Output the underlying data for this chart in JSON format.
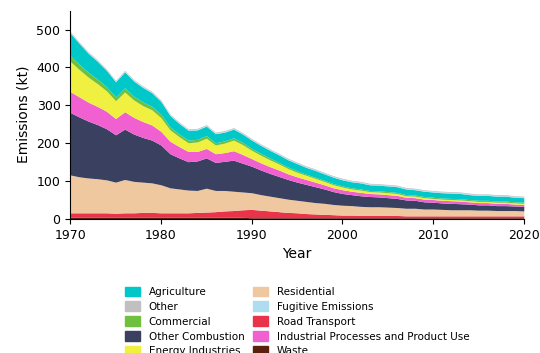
{
  "years": [
    1970,
    1971,
    1972,
    1973,
    1974,
    1975,
    1976,
    1977,
    1978,
    1979,
    1980,
    1981,
    1982,
    1983,
    1984,
    1985,
    1986,
    1987,
    1988,
    1989,
    1990,
    1991,
    1992,
    1993,
    1994,
    1995,
    1996,
    1997,
    1998,
    1999,
    2000,
    2001,
    2002,
    2003,
    2004,
    2005,
    2006,
    2007,
    2008,
    2009,
    2010,
    2011,
    2012,
    2013,
    2014,
    2015,
    2016,
    2017,
    2018,
    2019,
    2020
  ],
  "series": {
    "Waste": [
      4,
      4,
      4,
      4,
      4,
      4,
      4,
      4,
      4,
      4,
      4,
      4,
      4,
      4,
      4,
      4,
      4,
      4,
      4,
      4,
      3,
      3,
      3,
      3,
      3,
      3,
      3,
      3,
      3,
      3,
      3,
      3,
      3,
      3,
      3,
      3,
      3,
      3,
      3,
      3,
      3,
      3,
      3,
      3,
      3,
      3,
      3,
      3,
      3,
      3,
      3
    ],
    "Road Transport": [
      12,
      12,
      12,
      12,
      12,
      11,
      12,
      12,
      13,
      13,
      12,
      12,
      12,
      12,
      13,
      14,
      15,
      17,
      18,
      20,
      22,
      20,
      18,
      16,
      14,
      13,
      11,
      10,
      9,
      8,
      7,
      7,
      6,
      6,
      6,
      6,
      6,
      5,
      5,
      5,
      5,
      5,
      5,
      5,
      5,
      5,
      5,
      5,
      5,
      5,
      5
    ],
    "Residential": [
      100,
      95,
      92,
      90,
      87,
      82,
      88,
      83,
      80,
      78,
      74,
      66,
      63,
      60,
      58,
      63,
      56,
      54,
      51,
      47,
      44,
      41,
      39,
      37,
      35,
      33,
      32,
      30,
      29,
      27,
      26,
      25,
      24,
      23,
      23,
      22,
      21,
      20,
      20,
      18,
      18,
      17,
      16,
      16,
      16,
      15,
      15,
      14,
      14,
      14,
      13
    ],
    "Other Combustion": [
      165,
      158,
      150,
      143,
      135,
      125,
      133,
      125,
      118,
      113,
      105,
      90,
      82,
      75,
      78,
      80,
      74,
      77,
      82,
      76,
      70,
      65,
      60,
      56,
      52,
      48,
      45,
      42,
      38,
      34,
      31,
      29,
      28,
      27,
      26,
      25,
      24,
      22,
      21,
      19,
      18,
      17,
      17,
      16,
      15,
      14,
      14,
      13,
      13,
      12,
      12
    ],
    "Other": [
      2,
      2,
      2,
      2,
      2,
      2,
      2,
      2,
      2,
      2,
      2,
      2,
      2,
      2,
      2,
      2,
      2,
      2,
      2,
      2,
      2,
      2,
      2,
      2,
      2,
      2,
      2,
      2,
      2,
      2,
      2,
      2,
      2,
      2,
      2,
      2,
      2,
      2,
      2,
      2,
      2,
      2,
      2,
      2,
      2,
      2,
      2,
      2,
      2,
      2,
      2
    ],
    "Industrial Processes and Product Use": [
      55,
      53,
      50,
      48,
      46,
      43,
      46,
      44,
      42,
      40,
      36,
      33,
      30,
      27,
      25,
      25,
      23,
      23,
      25,
      23,
      20,
      19,
      18,
      17,
      15,
      14,
      13,
      12,
      11,
      10,
      10,
      9,
      9,
      8,
      8,
      8,
      8,
      7,
      7,
      7,
      7,
      7,
      7,
      7,
      6,
      6,
      6,
      6,
      6,
      5,
      5
    ],
    "Fugitive Emissions": [
      2,
      2,
      2,
      2,
      2,
      2,
      2,
      2,
      2,
      2,
      2,
      2,
      2,
      2,
      2,
      2,
      2,
      2,
      2,
      2,
      2,
      2,
      2,
      2,
      2,
      2,
      2,
      2,
      2,
      2,
      2,
      2,
      2,
      2,
      2,
      2,
      2,
      2,
      2,
      2,
      2,
      2,
      2,
      2,
      2,
      2,
      2,
      2,
      2,
      2,
      2
    ],
    "Energy Industries": [
      80,
      72,
      66,
      60,
      54,
      47,
      52,
      46,
      42,
      40,
      36,
      30,
      26,
      23,
      25,
      27,
      23,
      25,
      28,
      26,
      22,
      20,
      18,
      16,
      14,
      12,
      11,
      10,
      9,
      8,
      7,
      6,
      6,
      5,
      5,
      5,
      5,
      4,
      4,
      4,
      3,
      3,
      3,
      3,
      3,
      3,
      3,
      3,
      3,
      3,
      3
    ],
    "Commercial": [
      15,
      14,
      13,
      12,
      11,
      10,
      11,
      10,
      10,
      9,
      9,
      8,
      7,
      7,
      7,
      7,
      6,
      6,
      6,
      6,
      5,
      5,
      5,
      4,
      4,
      4,
      3,
      3,
      3,
      3,
      3,
      3,
      3,
      3,
      3,
      3,
      3,
      3,
      3,
      3,
      3,
      3,
      3,
      3,
      3,
      3,
      3,
      3,
      3,
      3,
      3
    ],
    "Agriculture": [
      60,
      55,
      50,
      47,
      43,
      40,
      42,
      40,
      38,
      36,
      34,
      30,
      28,
      26,
      25,
      25,
      24,
      23,
      23,
      22,
      22,
      21,
      20,
      20,
      19,
      19,
      18,
      18,
      17,
      17,
      16,
      16,
      16,
      15,
      15,
      15,
      15,
      15,
      14,
      14,
      14,
      14,
      14,
      14,
      13,
      13,
      13,
      13,
      13,
      12,
      12
    ]
  },
  "colors": {
    "Waste": "#5c2010",
    "Road Transport": "#e8334a",
    "Residential": "#f0c8a0",
    "Other Combustion": "#3a4060",
    "Other": "#c0c0c0",
    "Industrial Processes and Product Use": "#f060d0",
    "Fugitive Emissions": "#b0dcf0",
    "Energy Industries": "#f0f040",
    "Commercial": "#70c040",
    "Agriculture": "#00c8c8"
  },
  "stack_order": [
    "Waste",
    "Road Transport",
    "Residential",
    "Other Combustion",
    "Industrial Processes and Product Use",
    "Energy Industries",
    "Commercial",
    "Agriculture",
    "Fugitive Emissions",
    "Other"
  ],
  "ylabel": "Emissions (kt)",
  "xlabel": "Year",
  "ylim": [
    0,
    550
  ],
  "yticks": [
    0,
    100,
    200,
    300,
    400,
    500
  ],
  "xticks": [
    1970,
    1980,
    1990,
    2000,
    2010,
    2020
  ],
  "background_color": "#ffffff",
  "legend_cols_left": [
    "Agriculture",
    "Commercial",
    "Energy Industries",
    "Fugitive Emissions",
    "Industrial Processes and Product Use"
  ],
  "legend_cols_right": [
    "Other",
    "Other Combustion",
    "Residential",
    "Road Transport",
    "Waste"
  ]
}
